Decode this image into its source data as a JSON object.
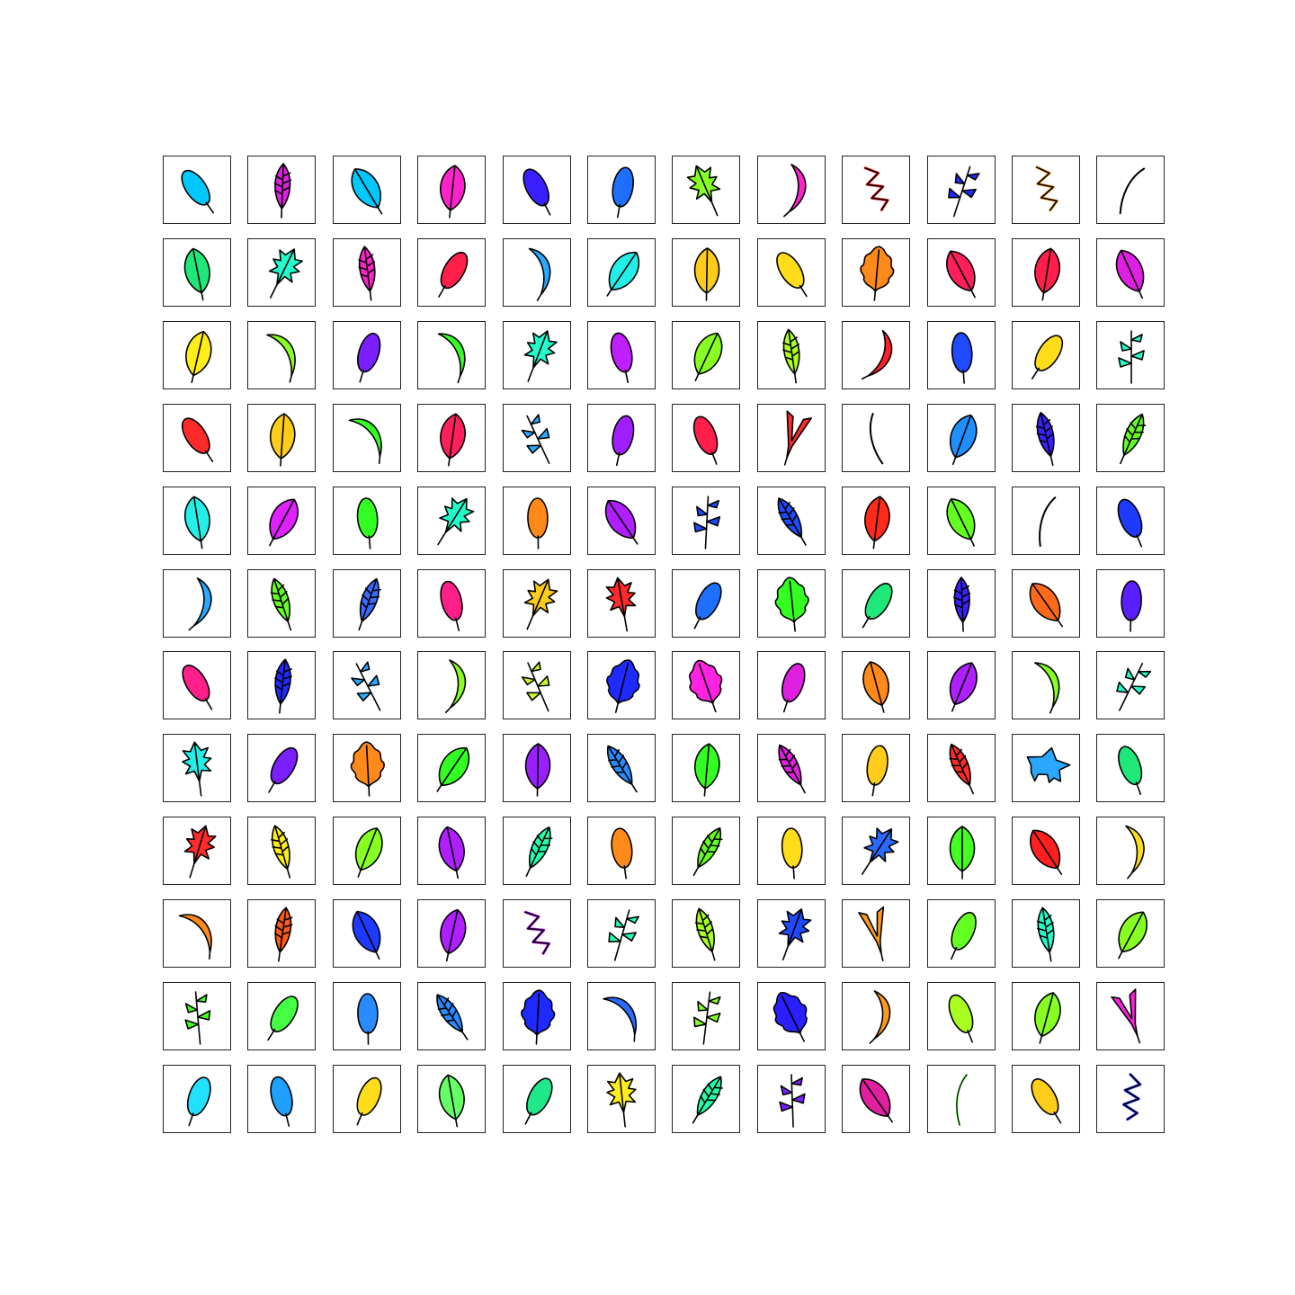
{
  "grid": {
    "rows": 12,
    "cols": 12,
    "cells": [
      {
        "shape": "oval",
        "color": "#00c8ff"
      },
      {
        "shape": "feather",
        "color": "#e020e0"
      },
      {
        "shape": "leaf",
        "color": "#00c8ff"
      },
      {
        "shape": "leaf",
        "color": "#ff22cc"
      },
      {
        "shape": "oval",
        "color": "#3a20ff"
      },
      {
        "shape": "oval",
        "color": "#1f6fff"
      },
      {
        "shape": "spiky",
        "color": "#88ff22"
      },
      {
        "shape": "curve",
        "color": "#ff22cc"
      },
      {
        "shape": "zigzag",
        "color": "#ff2a2a"
      },
      {
        "shape": "branch",
        "color": "#1f2aff"
      },
      {
        "shape": "zigzag",
        "color": "#ff9a20"
      },
      {
        "shape": "line",
        "color": "#000000"
      },
      {
        "shape": "leaf",
        "color": "#1fe87a"
      },
      {
        "shape": "spiky",
        "color": "#22ffcc"
      },
      {
        "shape": "feather",
        "color": "#ff22cc"
      },
      {
        "shape": "oval",
        "color": "#ff1f4a"
      },
      {
        "shape": "curve",
        "color": "#2aa8ff"
      },
      {
        "shape": "leaf",
        "color": "#22f0e8"
      },
      {
        "shape": "leaf",
        "color": "#ffcc1a"
      },
      {
        "shape": "oval",
        "color": "#ffdd1a"
      },
      {
        "shape": "oak",
        "color": "#ff8a1a"
      },
      {
        "shape": "leaf",
        "color": "#ff1f5a"
      },
      {
        "shape": "leaf",
        "color": "#ff1f4a"
      },
      {
        "shape": "leaf",
        "color": "#e020e0"
      },
      {
        "shape": "leaf",
        "color": "#ffee1a"
      },
      {
        "shape": "curve",
        "color": "#88ff22"
      },
      {
        "shape": "oval",
        "color": "#7a1fff"
      },
      {
        "shape": "curve",
        "color": "#33ff22"
      },
      {
        "shape": "spiky",
        "color": "#22ffcc"
      },
      {
        "shape": "oval",
        "color": "#c01fff"
      },
      {
        "shape": "leaf",
        "color": "#88ff22"
      },
      {
        "shape": "feather",
        "color": "#aaff22"
      },
      {
        "shape": "curve",
        "color": "#ff1f2a"
      },
      {
        "shape": "oval",
        "color": "#1f4aff"
      },
      {
        "shape": "oval",
        "color": "#ffdd1a"
      },
      {
        "shape": "branch",
        "color": "#22ffcc"
      },
      {
        "shape": "oval",
        "color": "#ff2a2a"
      },
      {
        "shape": "leaf",
        "color": "#ffcc1a"
      },
      {
        "shape": "curve",
        "color": "#33ff22"
      },
      {
        "shape": "leaf",
        "color": "#ff1f5a"
      },
      {
        "shape": "branch",
        "color": "#2aa8ff"
      },
      {
        "shape": "oval",
        "color": "#a01fff"
      },
      {
        "shape": "oval",
        "color": "#ff1f4a"
      },
      {
        "shape": "vshape",
        "color": "#ff2a2a"
      },
      {
        "shape": "line",
        "color": "#000000"
      },
      {
        "shape": "leaf",
        "color": "#1f8fff"
      },
      {
        "shape": "feather",
        "color": "#3a20ff"
      },
      {
        "shape": "feather",
        "color": "#66ff22"
      },
      {
        "shape": "leaf",
        "color": "#22f0e8"
      },
      {
        "shape": "leaf",
        "color": "#e020ff"
      },
      {
        "shape": "oval",
        "color": "#33ff22"
      },
      {
        "shape": "spiky",
        "color": "#22ffcc"
      },
      {
        "shape": "oval",
        "color": "#ff8a1a"
      },
      {
        "shape": "leaf",
        "color": "#b01fff"
      },
      {
        "shape": "branch",
        "color": "#1f4aff"
      },
      {
        "shape": "feather",
        "color": "#1f4aff"
      },
      {
        "shape": "leaf",
        "color": "#ff2a1a"
      },
      {
        "shape": "leaf",
        "color": "#66ff22"
      },
      {
        "shape": "line",
        "color": "#000000"
      },
      {
        "shape": "oval",
        "color": "#1f3aff"
      },
      {
        "shape": "curve",
        "color": "#2aa8ff"
      },
      {
        "shape": "feather",
        "color": "#66ff22"
      },
      {
        "shape": "feather",
        "color": "#3a6aff"
      },
      {
        "shape": "oval",
        "color": "#ff1f8a"
      },
      {
        "shape": "spiky",
        "color": "#ffcc1a"
      },
      {
        "shape": "spiky",
        "color": "#ff2a2a"
      },
      {
        "shape": "oval",
        "color": "#1f6fff"
      },
      {
        "shape": "oak",
        "color": "#33ff22"
      },
      {
        "shape": "oval",
        "color": "#1fe87a"
      },
      {
        "shape": "feather",
        "color": "#3a20ff"
      },
      {
        "shape": "leaf",
        "color": "#ff6a1a"
      },
      {
        "shape": "oval",
        "color": "#5a1fff"
      },
      {
        "shape": "oval",
        "color": "#ff1f8a"
      },
      {
        "shape": "feather",
        "color": "#1f2aff"
      },
      {
        "shape": "branch",
        "color": "#2aa8ff"
      },
      {
        "shape": "curve",
        "color": "#88ff22"
      },
      {
        "shape": "branch",
        "color": "#ccff22"
      },
      {
        "shape": "oak",
        "color": "#1f2aff"
      },
      {
        "shape": "oak",
        "color": "#ff22e0"
      },
      {
        "shape": "oval",
        "color": "#e020e0"
      },
      {
        "shape": "leaf",
        "color": "#ff8a1a"
      },
      {
        "shape": "leaf",
        "color": "#b01fff"
      },
      {
        "shape": "curve",
        "color": "#88ff22"
      },
      {
        "shape": "branch",
        "color": "#22ffcc"
      },
      {
        "shape": "spiky",
        "color": "#22f0e8"
      },
      {
        "shape": "oval",
        "color": "#7a1fff"
      },
      {
        "shape": "oak",
        "color": "#ff8a1a"
      },
      {
        "shape": "leaf",
        "color": "#33ff22"
      },
      {
        "shape": "leaf",
        "color": "#9a1fff"
      },
      {
        "shape": "feather",
        "color": "#2a8aff"
      },
      {
        "shape": "leaf",
        "color": "#33ff22"
      },
      {
        "shape": "feather",
        "color": "#e020e0"
      },
      {
        "shape": "oval",
        "color": "#ffcc1a"
      },
      {
        "shape": "feather",
        "color": "#ff2a2a"
      },
      {
        "shape": "animal",
        "color": "#2aa8ff"
      },
      {
        "shape": "oval",
        "color": "#1fe87a"
      },
      {
        "shape": "spiky",
        "color": "#ff2a2a"
      },
      {
        "shape": "feather",
        "color": "#ffee1a"
      },
      {
        "shape": "leaf",
        "color": "#88ff22"
      },
      {
        "shape": "leaf",
        "color": "#b01fff"
      },
      {
        "shape": "feather",
        "color": "#22ffaa"
      },
      {
        "shape": "oval",
        "color": "#ff8a1a"
      },
      {
        "shape": "feather",
        "color": "#66ff22"
      },
      {
        "shape": "oval",
        "color": "#ffdd1a"
      },
      {
        "shape": "spiky",
        "color": "#2a6aff"
      },
      {
        "shape": "leaf",
        "color": "#44ff22"
      },
      {
        "shape": "leaf",
        "color": "#ff1f1f"
      },
      {
        "shape": "curve",
        "color": "#ffdd1a"
      },
      {
        "shape": "curve",
        "color": "#ff8a1a"
      },
      {
        "shape": "feather",
        "color": "#ff5a1a"
      },
      {
        "shape": "leaf",
        "color": "#1f3aff"
      },
      {
        "shape": "leaf",
        "color": "#b01fff"
      },
      {
        "shape": "zigzag",
        "color": "#c01fff"
      },
      {
        "shape": "branch",
        "color": "#22ffaa"
      },
      {
        "shape": "feather",
        "color": "#aaff22"
      },
      {
        "shape": "spiky",
        "color": "#1f4aff"
      },
      {
        "shape": "vshape",
        "color": "#ff9a1a"
      },
      {
        "shape": "oval",
        "color": "#66ff22"
      },
      {
        "shape": "feather",
        "color": "#22ffcc"
      },
      {
        "shape": "leaf",
        "color": "#88ff22"
      },
      {
        "shape": "branch",
        "color": "#44ff22"
      },
      {
        "shape": "oval",
        "color": "#44ff44"
      },
      {
        "shape": "oval",
        "color": "#2a8aff"
      },
      {
        "shape": "feather",
        "color": "#2a8aff"
      },
      {
        "shape": "oak",
        "color": "#1f2aff"
      },
      {
        "shape": "curve",
        "color": "#2a6aff"
      },
      {
        "shape": "branch",
        "color": "#88ff22"
      },
      {
        "shape": "oak",
        "color": "#2a1fff"
      },
      {
        "shape": "curve",
        "color": "#ff9a1a"
      },
      {
        "shape": "oval",
        "color": "#aaff22"
      },
      {
        "shape": "leaf",
        "color": "#88ff22"
      },
      {
        "shape": "vshape",
        "color": "#ff1fe0"
      },
      {
        "shape": "oval",
        "color": "#22e0ff"
      },
      {
        "shape": "oval",
        "color": "#1fa0ff"
      },
      {
        "shape": "oval",
        "color": "#ffdd1a"
      },
      {
        "shape": "leaf",
        "color": "#66ff66"
      },
      {
        "shape": "oval",
        "color": "#1fe88a"
      },
      {
        "shape": "spiky",
        "color": "#ffee1a"
      },
      {
        "shape": "feather",
        "color": "#22ffaa"
      },
      {
        "shape": "branch",
        "color": "#7a1fff"
      },
      {
        "shape": "leaf",
        "color": "#e020a0"
      },
      {
        "shape": "line",
        "color": "#44ff22"
      },
      {
        "shape": "oval",
        "color": "#ffcc1a"
      },
      {
        "shape": "zigzag",
        "color": "#1f2aff"
      }
    ]
  }
}
